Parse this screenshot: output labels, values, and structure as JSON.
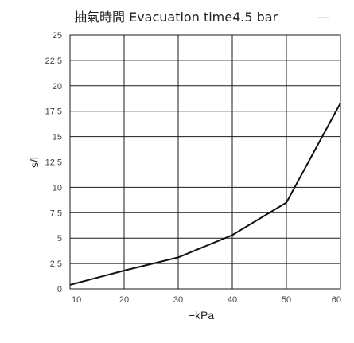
{
  "chart_data": {
    "type": "line",
    "title": "抽氣時間 Evacuation time4.5 bar",
    "legend_symbol": "—",
    "xlabel": "−kPa",
    "ylabel": "s/l",
    "xlim": [
      10,
      60
    ],
    "ylim": [
      0,
      25
    ],
    "x_ticks": [
      10,
      20,
      30,
      40,
      50,
      60
    ],
    "y_ticks": [
      0,
      2.5,
      5,
      7.5,
      10,
      12.5,
      15,
      17.5,
      20,
      22.5,
      25
    ],
    "x_tick_labels": [
      "10",
      "20",
      "30",
      "40",
      "50",
      "60"
    ],
    "y_tick_labels": [
      "0",
      "2.5",
      "5",
      "7.5",
      "10",
      "12.5",
      "15",
      "17.5",
      "20",
      "22.5",
      "25"
    ],
    "grid": true,
    "legend_position": "top",
    "colors": {
      "line": "#111111",
      "grid": "#1a1a1a"
    },
    "series": [
      {
        "x": [
          10,
          20,
          30,
          40,
          50,
          60
        ],
        "y": [
          0.4,
          1.8,
          3.1,
          5.3,
          8.5,
          18.3
        ]
      }
    ]
  }
}
